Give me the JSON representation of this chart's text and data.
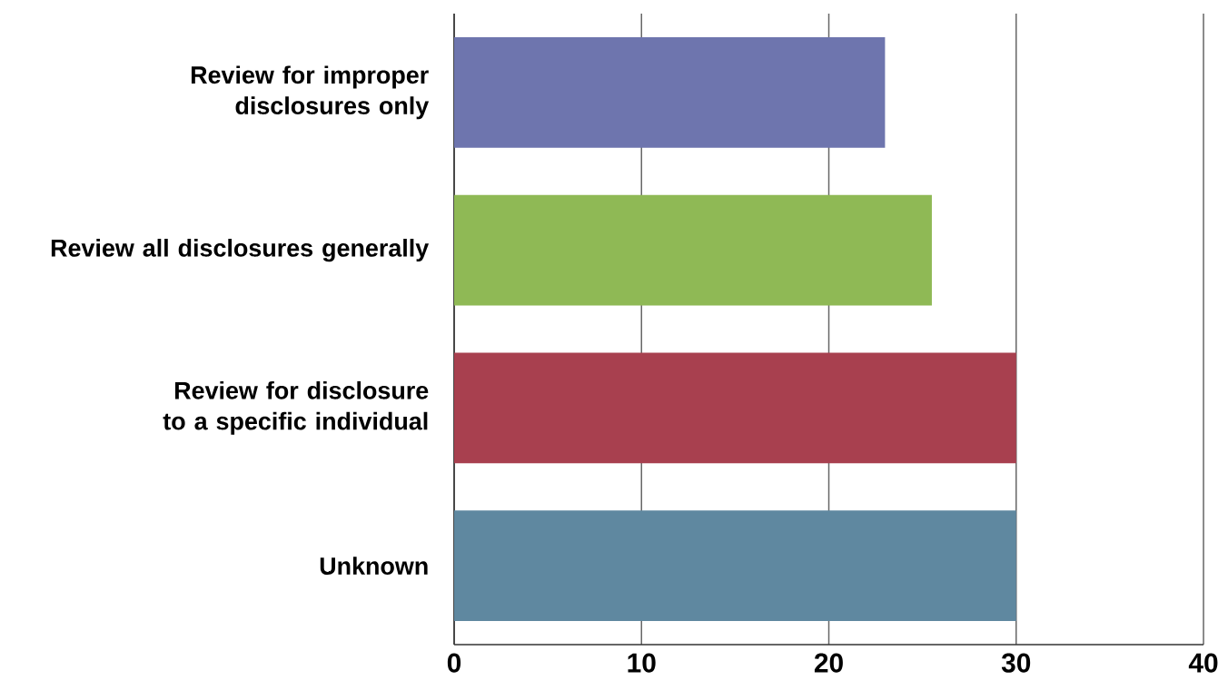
{
  "chart_data": {
    "type": "bar",
    "orientation": "horizontal",
    "categories": [
      "Review for improper disclosures only",
      "Review all disclosures generally",
      "Review for disclosure to a specific individual",
      "Unknown"
    ],
    "values": [
      23,
      25.5,
      30,
      30
    ],
    "colors": [
      "#6e75ae",
      "#8fb955",
      "#a8404f",
      "#5f88a0"
    ],
    "xlim": [
      0,
      40
    ],
    "xticks": [
      0,
      10,
      20,
      30,
      40
    ],
    "grid": "x"
  }
}
